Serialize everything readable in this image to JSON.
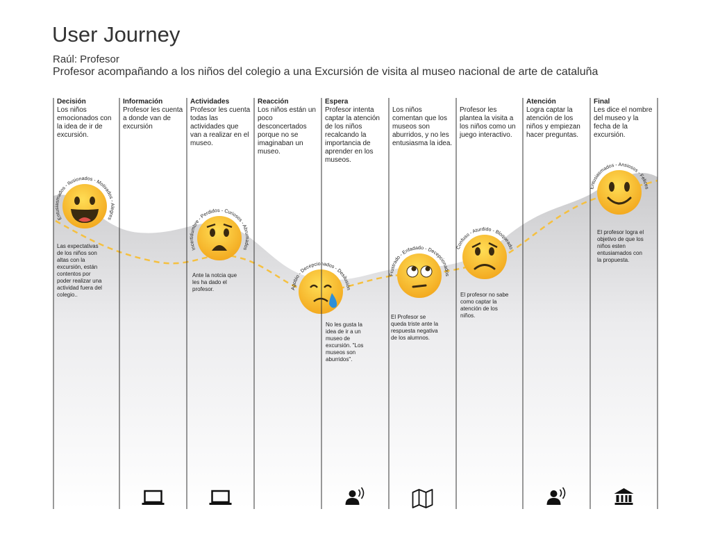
{
  "header": {
    "title": "User Journey",
    "persona": "Raúl: Profesor",
    "scenario": "Profesor acompañando a los niños del colegio a una Excursión de visita al museo nacional de arte de cataluña"
  },
  "stages": [
    {
      "phase": "Decisión",
      "description": "Los niños emocionados con la idea de ir de excursión.",
      "emotions": "Entusiasmados - Ilusionados - Motivados - Alegres",
      "note": "Las expectativas de los niños son altas con la excursión, están contentos por poder realizar una actividad fuera del colegio.."
    },
    {
      "phase": "Información",
      "description": "Profesor les cuenta a donde van de excursión"
    },
    {
      "phase": "Actividades",
      "description": "Profesor les cuenta todas las actividades que van a realizar en el museo.",
      "emotions": "Incertidumbre - Perdidos - Curiosos - Abrumados",
      "note": "Ante la notcia que les ha dado el profesor."
    },
    {
      "phase": "Reacción",
      "description": "Los niños están un poco desconcertados porque no se imaginaban un museo."
    },
    {
      "phase": "Espera",
      "description": "Profesor intenta captar la atención de los niños recalcando la importancia de aprender en los museos.",
      "emotions": "Agobio - Decepcionados - Desilusión",
      "note": "No les gusta la idea de ir a un museo de excursión. \"Los museos son aburridos\"."
    },
    {
      "description": "Los niños comentan que los museos son aburridos, y no les entusiasma la idea.",
      "emotions": "Frustrado - Enfadado - Decepcionados",
      "note": "El Profesor se queda triste ante la respuesta negativa de los alumnos."
    },
    {
      "description": "Profesor les plantea la visita a los niños como un juego interactivo.",
      "emotions": "Confuso - Aturdido - Bloqueado",
      "note": "El profesor no sabe como captar la atención de los niños."
    },
    {
      "phase": "Atención",
      "description": "Logra captar la atención de los niños y empiezan hacer preguntas."
    },
    {
      "phase": "Final",
      "description": "Les dice el nombre del museo y la fecha de la excursión.",
      "emotions": "Entusiasmados - Ansiosos - Felices",
      "note": "El profesor logra el objetivo de que los niños esten entusiamados con la propuesta."
    }
  ]
}
